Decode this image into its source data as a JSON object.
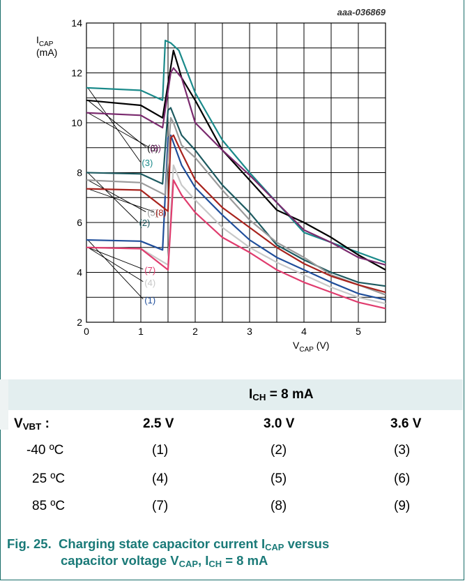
{
  "figure_ref": "aaa-036869",
  "caption": {
    "number": "Fig. 25.",
    "line1": "Charging state capacitor current I",
    "line1_sub": "CAP",
    "line1_tail": " versus",
    "line2": "capacitor voltage V",
    "line2_sub": "CAP",
    "line2_mid": ", I",
    "line2_sub2": "CH",
    "line2_tail": " = 8 mA"
  },
  "legend": {
    "header": "I",
    "header_sub": "CH",
    "header_tail": " = 8 mA",
    "row_label": "V",
    "row_label_sub": "VBT",
    "row_label_tail": " :",
    "columns": [
      "2.5 V",
      "3.0 V",
      "3.6 V"
    ],
    "rows": [
      {
        "temp": "-40 ºC",
        "cells": [
          "(1)",
          "(2)",
          "(3)"
        ]
      },
      {
        "temp": "25 ºC",
        "cells": [
          "(4)",
          "(5)",
          "(6)"
        ]
      },
      {
        "temp": "85 ºC",
        "cells": [
          "(7)",
          "(8)",
          "(9)"
        ]
      }
    ]
  },
  "chart_data": {
    "type": "line",
    "xlabel": "V",
    "xlabel_sub": "CAP",
    "xlabel_unit": " (V)",
    "ylabel": "I",
    "ylabel_sub": "CAP",
    "ylabel_unit": "(mA)",
    "xlim": [
      0,
      5.5
    ],
    "ylim": [
      2,
      14
    ],
    "xticks": [
      0,
      1,
      2,
      3,
      4,
      5
    ],
    "yticks": [
      2,
      4,
      6,
      8,
      10,
      12,
      14
    ],
    "grid": true,
    "series": [
      {
        "name": "(1)",
        "color": "#1f4e9b",
        "points": [
          [
            0,
            5.3
          ],
          [
            1,
            5.25
          ],
          [
            1.4,
            4.9
          ],
          [
            1.5,
            9.4
          ],
          [
            1.55,
            9.5
          ],
          [
            1.75,
            8.3
          ],
          [
            2,
            7.4
          ],
          [
            2.5,
            6.3
          ],
          [
            3,
            5.3
          ],
          [
            3.5,
            4.6
          ],
          [
            4,
            4.1
          ],
          [
            4.5,
            3.6
          ],
          [
            5,
            3.15
          ],
          [
            5.5,
            2.9
          ]
        ]
      },
      {
        "name": "(2)",
        "color": "#1d5a60",
        "points": [
          [
            0,
            8
          ],
          [
            1,
            7.95
          ],
          [
            1.4,
            7.55
          ],
          [
            1.5,
            10.5
          ],
          [
            1.55,
            10.6
          ],
          [
            1.75,
            9.5
          ],
          [
            2,
            8.9
          ],
          [
            2.5,
            7.5
          ],
          [
            3,
            6.4
          ],
          [
            3.5,
            5.1
          ],
          [
            4,
            4.5
          ],
          [
            4.5,
            4.0
          ],
          [
            5,
            3.6
          ],
          [
            5.5,
            3.45
          ]
        ]
      },
      {
        "name": "(3)",
        "color": "#1a8a8a",
        "points": [
          [
            0,
            11.4
          ],
          [
            1,
            11.3
          ],
          [
            1.4,
            10.9
          ],
          [
            1.45,
            13.3
          ],
          [
            1.55,
            13.2
          ],
          [
            1.7,
            12.9
          ],
          [
            2,
            11.2
          ],
          [
            2.5,
            9.3
          ],
          [
            3,
            8.0
          ],
          [
            3.5,
            6.8
          ],
          [
            4,
            5.6
          ],
          [
            4.5,
            5.2
          ],
          [
            5,
            4.8
          ],
          [
            5.5,
            4.4
          ]
        ]
      },
      {
        "name": "(4)",
        "color": "#c8c8c8",
        "points": [
          [
            0,
            5.0
          ],
          [
            1,
            4.95
          ],
          [
            1.5,
            4.3
          ],
          [
            1.6,
            8.3
          ],
          [
            1.75,
            7.5
          ],
          [
            2,
            6.9
          ],
          [
            2.5,
            5.8
          ],
          [
            3,
            5.0
          ],
          [
            3.5,
            4.4
          ],
          [
            4,
            3.9
          ],
          [
            4.5,
            3.4
          ],
          [
            5,
            3.0
          ],
          [
            5.5,
            2.75
          ]
        ]
      },
      {
        "name": "(5)",
        "color": "#9a9a9a",
        "points": [
          [
            0,
            7.7
          ],
          [
            1,
            7.6
          ],
          [
            1.45,
            7.1
          ],
          [
            1.55,
            10.2
          ],
          [
            1.6,
            10.0
          ],
          [
            1.75,
            9.1
          ],
          [
            2,
            8.6
          ],
          [
            2.5,
            7.3
          ],
          [
            3,
            6.1
          ],
          [
            3.5,
            5.2
          ],
          [
            4,
            4.6
          ],
          [
            4.5,
            3.9
          ],
          [
            5,
            3.5
          ],
          [
            5.5,
            3.1
          ]
        ]
      },
      {
        "name": "(6)",
        "color": "#000000",
        "points": [
          [
            0,
            10.9
          ],
          [
            1,
            10.7
          ],
          [
            1.4,
            10.2
          ],
          [
            1.6,
            12.9
          ],
          [
            1.75,
            11.8
          ],
          [
            2,
            10.9
          ],
          [
            2.5,
            8.9
          ],
          [
            3,
            7.7
          ],
          [
            3.5,
            6.5
          ],
          [
            4,
            6.0
          ],
          [
            4.5,
            5.4
          ],
          [
            5,
            4.7
          ],
          [
            5.5,
            4.1
          ]
        ]
      },
      {
        "name": "(7)",
        "color": "#e03c6e",
        "points": [
          [
            0,
            5.0
          ],
          [
            1,
            4.95
          ],
          [
            1.5,
            4.1
          ],
          [
            1.6,
            7.7
          ],
          [
            1.75,
            7.1
          ],
          [
            2,
            6.4
          ],
          [
            2.5,
            5.4
          ],
          [
            3,
            4.8
          ],
          [
            3.5,
            4.1
          ],
          [
            4,
            3.6
          ],
          [
            4.5,
            3.2
          ],
          [
            5,
            2.8
          ],
          [
            5.5,
            2.55
          ]
        ]
      },
      {
        "name": "(8)",
        "color": "#a8231d",
        "points": [
          [
            0,
            7.35
          ],
          [
            1,
            7.3
          ],
          [
            1.5,
            6.45
          ],
          [
            1.55,
            9.4
          ],
          [
            1.6,
            9.5
          ],
          [
            1.75,
            8.8
          ],
          [
            2,
            7.7
          ],
          [
            2.5,
            6.6
          ],
          [
            3,
            5.8
          ],
          [
            3.5,
            5.0
          ],
          [
            4,
            4.35
          ],
          [
            4.5,
            3.85
          ],
          [
            5,
            3.5
          ],
          [
            5.5,
            3.2
          ]
        ]
      },
      {
        "name": "(9)",
        "color": "#7a2a6e",
        "points": [
          [
            0,
            10.4
          ],
          [
            1,
            10.3
          ],
          [
            1.4,
            9.8
          ],
          [
            1.55,
            12.0
          ],
          [
            1.6,
            12.2
          ],
          [
            1.75,
            11.8
          ],
          [
            2,
            10.0
          ],
          [
            2.5,
            8.9
          ],
          [
            3,
            7.9
          ],
          [
            3.5,
            6.8
          ],
          [
            4,
            5.7
          ],
          [
            4.5,
            5.2
          ],
          [
            5,
            4.6
          ],
          [
            5.5,
            4.3
          ]
        ]
      }
    ],
    "annotations": [
      {
        "label": "(6)",
        "color": "#000000",
        "anchor": [
          0.4,
          9.0
        ]
      },
      {
        "label": "(9)",
        "color": "#7a2a6e",
        "anchor": [
          0.45,
          9.0
        ]
      },
      {
        "label": "(3)",
        "color": "#1a8a8a",
        "anchor": [
          0.3,
          8.4
        ]
      },
      {
        "label": "(5)",
        "color": "#9a9a9a",
        "anchor": [
          0.4,
          6.4
        ]
      },
      {
        "label": "(8)",
        "color": "#a8231d",
        "anchor": [
          0.55,
          6.4
        ]
      },
      {
        "label": "(2)",
        "color": "#1d5a60",
        "anchor": [
          0.25,
          6.0
        ]
      },
      {
        "label": "(7)",
        "color": "#e03c6e",
        "anchor": [
          0.35,
          4.1
        ]
      },
      {
        "label": "(4)",
        "color": "#c8c8c8",
        "anchor": [
          0.35,
          3.6
        ]
      },
      {
        "label": "(1)",
        "color": "#1f4e9b",
        "anchor": [
          0.35,
          2.9
        ]
      }
    ]
  }
}
